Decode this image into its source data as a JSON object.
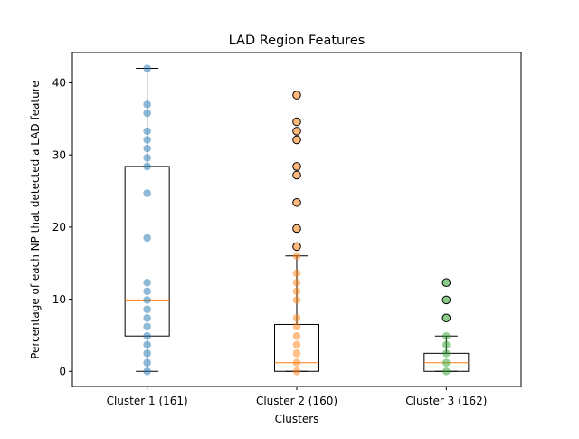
{
  "chart_data": {
    "type": "box",
    "title": "LAD Region Features",
    "xlabel": "Clusters",
    "ylabel": "Percentage of each NP that detected a LAD feature",
    "categories": [
      "Cluster 1 (161)",
      "Cluster 2 (160)",
      "Cluster 3 (162)"
    ],
    "ylim": [
      -2.1,
      44.2
    ],
    "yticks": [
      "0",
      "10",
      "20",
      "30",
      "40"
    ],
    "grid": false,
    "colors": {
      "cluster1": "#1f77b4",
      "cluster2": "#ff7f0e",
      "cluster3": "#2ca02c",
      "median": "#ff7f0e",
      "box": "#000000"
    },
    "boxes": [
      {
        "name": "Cluster 1 (161)",
        "whislo": 0,
        "q1": 4.9,
        "med": 9.9,
        "q3": 28.4,
        "whishi": 42.0,
        "fliers": []
      },
      {
        "name": "Cluster 2 (160)",
        "whislo": 0,
        "q1": 0,
        "med": 1.2,
        "q3": 6.5,
        "whishi": 16.0,
        "fliers": [
          17.3,
          19.8,
          23.4,
          27.2,
          28.4,
          32.1,
          33.3,
          34.6,
          38.3
        ]
      },
      {
        "name": "Cluster 3 (162)",
        "whislo": 0,
        "q1": 0,
        "med": 1.2,
        "q3": 2.5,
        "whishi": 4.9,
        "fliers": [
          7.4,
          9.9,
          12.3
        ]
      }
    ],
    "points": [
      [
        0,
        1.2,
        2.5,
        3.7,
        4.9,
        6.2,
        7.4,
        8.6,
        9.9,
        11.1,
        12.3,
        18.5,
        24.7,
        28.4,
        29.6,
        30.9,
        32.1,
        33.3,
        35.8,
        37.0,
        42.0
      ],
      [
        0,
        1.2,
        2.5,
        3.7,
        4.9,
        6.2,
        7.4,
        9.9,
        11.1,
        12.3,
        13.6,
        16.0
      ],
      [
        0,
        1.2,
        2.5,
        3.7,
        4.9
      ]
    ]
  }
}
